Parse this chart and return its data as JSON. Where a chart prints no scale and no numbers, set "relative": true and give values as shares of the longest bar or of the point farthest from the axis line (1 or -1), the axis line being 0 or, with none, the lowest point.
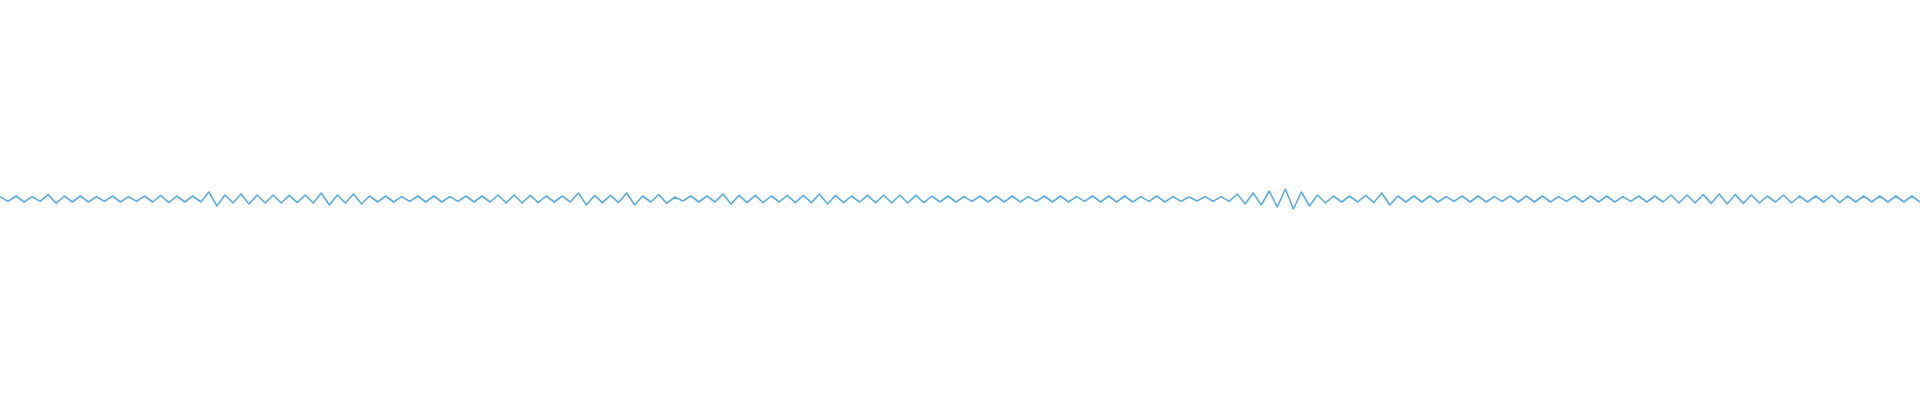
{
  "chart_data": {
    "type": "line",
    "relative": true,
    "color": "#5dade2",
    "categories": [
      null,
      null,
      null,
      null,
      null,
      null,
      null,
      null,
      null,
      null,
      null,
      null,
      null,
      null,
      null,
      null,
      null,
      null,
      null,
      null,
      null,
      null,
      null,
      null,
      null,
      null,
      null,
      null,
      null,
      null,
      null,
      null,
      null,
      null,
      null,
      null,
      null,
      null,
      null,
      null,
      null,
      null,
      null,
      null,
      null,
      null,
      null,
      null,
      null,
      null,
      null,
      null,
      null,
      null,
      null,
      null,
      null,
      null,
      null,
      null,
      null,
      null,
      null,
      null,
      null,
      null,
      null,
      null,
      null,
      null,
      null,
      null,
      null,
      null,
      null,
      null,
      null,
      null,
      null,
      null,
      null,
      null,
      null,
      null,
      null,
      null,
      null,
      null,
      null,
      null,
      null,
      null,
      null,
      null,
      null,
      null,
      null,
      null,
      null,
      null,
      null,
      null,
      null,
      null,
      null,
      null,
      null,
      null,
      null,
      null,
      null,
      null,
      null,
      null,
      null,
      null,
      null,
      null,
      null,
      null,
      null,
      null,
      null,
      null,
      null,
      null,
      null,
      null,
      null,
      null,
      null,
      null,
      null,
      null,
      null,
      null,
      null,
      null,
      null,
      null,
      null,
      null,
      null,
      null,
      null,
      null,
      null,
      null,
      null,
      null,
      null,
      null,
      null,
      null,
      null,
      null,
      null,
      null,
      null,
      null,
      null,
      null,
      null,
      null,
      null,
      null,
      null,
      null,
      null,
      null,
      null,
      null,
      null,
      null,
      null,
      null,
      null,
      null,
      null,
      null,
      null,
      null,
      null,
      null,
      null,
      null,
      null,
      null,
      null,
      null,
      null,
      null,
      null,
      null,
      null,
      null,
      null,
      null,
      null,
      null,
      null,
      null,
      null,
      null,
      null,
      null,
      null,
      null,
      null,
      null,
      null,
      null,
      null,
      null,
      null,
      null,
      null,
      null,
      null,
      null,
      null,
      null,
      null,
      null,
      null,
      null,
      null,
      null,
      null,
      null,
      null,
      null,
      null,
      null,
      null,
      null,
      null,
      null,
      null,
      null
    ],
    "values": [
      0.62,
      0.38,
      0.65,
      0.35,
      0.62,
      0.38,
      0.72,
      0.28,
      0.65,
      0.35,
      0.65,
      0.35,
      0.62,
      0.38,
      0.65,
      0.35,
      0.62,
      0.38,
      0.65,
      0.35,
      0.68,
      0.32,
      0.65,
      0.35,
      0.65,
      0.35,
      0.85,
      0.15,
      0.7,
      0.3,
      0.75,
      0.25,
      0.7,
      0.3,
      0.7,
      0.3,
      0.68,
      0.32,
      0.7,
      0.3,
      0.8,
      0.2,
      0.7,
      0.3,
      0.75,
      0.25,
      0.65,
      0.35,
      0.65,
      0.35,
      0.62,
      0.38,
      0.65,
      0.35,
      0.65,
      0.35,
      0.62,
      0.38,
      0.65,
      0.35,
      0.65,
      0.35,
      0.7,
      0.3,
      0.7,
      0.3,
      0.68,
      0.32,
      0.65,
      0.35,
      0.65,
      0.35,
      0.8,
      0.2,
      0.68,
      0.32,
      0.68,
      0.32,
      0.8,
      0.2,
      0.65,
      0.35,
      0.72,
      0.28,
      0.6,
      0.4,
      0.65,
      0.35,
      0.65,
      0.35,
      0.75,
      0.25,
      0.68,
      0.32,
      0.68,
      0.32,
      0.65,
      0.35,
      0.68,
      0.32,
      0.68,
      0.32,
      0.75,
      0.25,
      0.68,
      0.32,
      0.65,
      0.35,
      0.68,
      0.32,
      0.7,
      0.3,
      0.7,
      0.3,
      0.68,
      0.32,
      0.65,
      0.35,
      0.65,
      0.35,
      0.62,
      0.38,
      0.65,
      0.35,
      0.65,
      0.35,
      0.65,
      0.35,
      0.62,
      0.38,
      0.65,
      0.35,
      0.65,
      0.35,
      0.62,
      0.38,
      0.65,
      0.35,
      0.65,
      0.35,
      0.65,
      0.35,
      0.62,
      0.38,
      0.65,
      0.35,
      0.62,
      0.38,
      0.6,
      0.4,
      0.62,
      0.38,
      0.62,
      0.38,
      0.75,
      0.25,
      0.8,
      0.2,
      0.9,
      0.1,
      1,
      0,
      0.85,
      0.15,
      0.7,
      0.3,
      0.65,
      0.35,
      0.65,
      0.35,
      0.68,
      0.32,
      0.8,
      0.2,
      0.65,
      0.35,
      0.65,
      0.35,
      0.65,
      0.35,
      0.62,
      0.38,
      0.65,
      0.35,
      0.65,
      0.35,
      0.62,
      0.38,
      0.65,
      0.35,
      0.65,
      0.35,
      0.65,
      0.35,
      0.62,
      0.38,
      0.65,
      0.35,
      0.65,
      0.35,
      0.65,
      0.35,
      0.62,
      0.38,
      0.65,
      0.35,
      0.65,
      0.35,
      0.7,
      0.3,
      0.7,
      0.3,
      0.72,
      0.28,
      0.75,
      0.25,
      0.72,
      0.28,
      0.7,
      0.3,
      0.65,
      0.35,
      0.7,
      0.3,
      0.65,
      0.35,
      0.65,
      0.35,
      0.68,
      0.32,
      0.65,
      0.35,
      0.65,
      0.35,
      0.65,
      0.35,
      0.65,
      0.35,
      0.65,
      0.35
    ]
  }
}
